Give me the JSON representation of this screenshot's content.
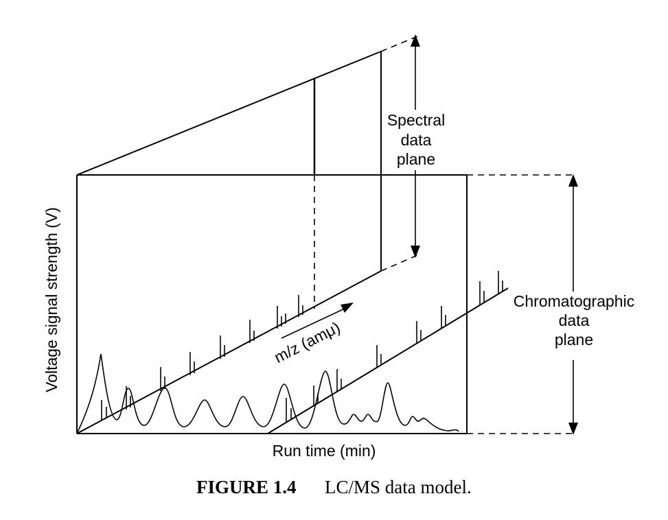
{
  "diagram": {
    "y_axis_label": "Voltage signal strength (V)",
    "x_axis_label": "Run time (min)",
    "mz_label": "m/z (amμ)",
    "spectral_plane_label": [
      "Spectral",
      "data",
      "plane"
    ],
    "chromatographic_plane_label": [
      "Chromatographic",
      "data",
      "plane"
    ]
  },
  "caption": {
    "figure_number": "FIGURE 1.4",
    "text": "LC/MS data model."
  }
}
